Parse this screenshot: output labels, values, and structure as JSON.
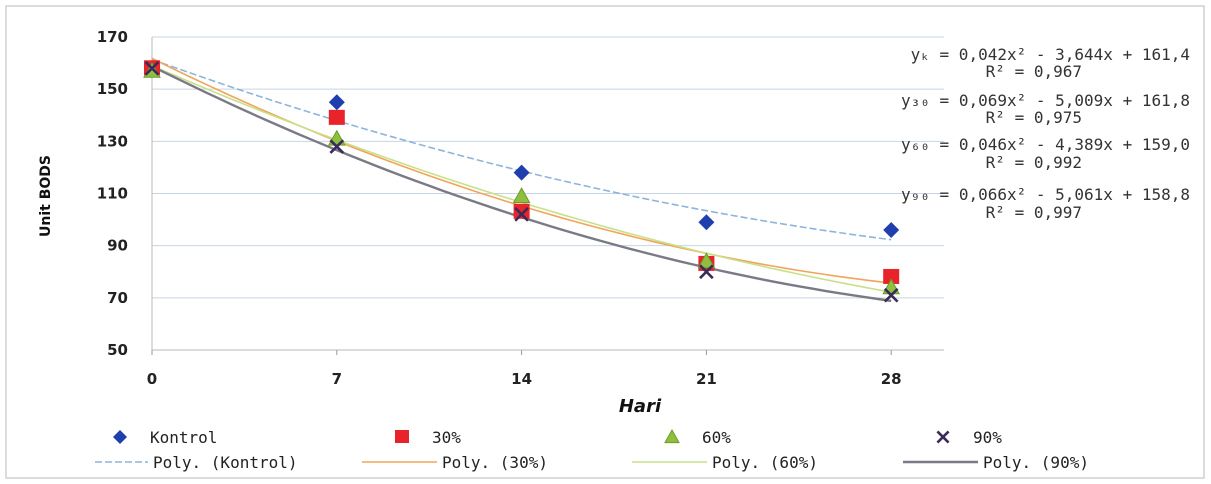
{
  "chart_data": {
    "type": "scatter",
    "xlabel": "Hari",
    "ylabel": "Unit BODS",
    "xlim": [
      0,
      30
    ],
    "ylim": [
      50,
      170
    ],
    "xticks": [
      0,
      7,
      14,
      21,
      28
    ],
    "yticks": [
      50,
      70,
      90,
      110,
      130,
      150,
      170
    ],
    "grid": "horizontal",
    "legend_position": "bottom",
    "x": [
      0,
      7,
      14,
      21,
      28
    ],
    "series": [
      {
        "name": "Kontrol",
        "marker": "diamond",
        "color": "#1f3fae",
        "values": [
          158,
          145,
          118,
          99,
          96
        ],
        "trend_name": "Poly. (Kontrol)",
        "trend_color": "#8fb4dc",
        "trend_coef": [
          0.042,
          -3.644,
          161.4
        ],
        "equation": "yₖ = 0,042x² - 3,644x + 161,4",
        "r2": "R² = 0,967"
      },
      {
        "name": "30%",
        "marker": "square",
        "color": "#e8232a",
        "values": [
          158,
          139,
          103,
          83,
          78
        ],
        "trend_name": "Poly. (30%)",
        "trend_color": "#f0a55a",
        "trend_coef": [
          0.069,
          -5.009,
          161.8
        ],
        "equation": "y₃₀ = 0,069x² - 5,009x + 161,8",
        "r2": "R² = 0,975"
      },
      {
        "name": "60%",
        "marker": "triangle",
        "color": "#8fbf3f",
        "values": [
          157,
          131,
          109,
          84,
          74
        ],
        "trend_name": "Poly. (60%)",
        "trend_color": "#c9e08a",
        "trend_coef": [
          0.046,
          -4.389,
          159.0
        ],
        "equation": "y₆₀ = 0,046x² - 4,389x + 159,0",
        "r2": "R² = 0,992"
      },
      {
        "name": "90%",
        "marker": "x",
        "color": "#3a2b5a",
        "values": [
          158,
          128,
          102,
          80,
          71
        ],
        "trend_name": "Poly. (90%)",
        "trend_color": "#7a7a86",
        "trend_coef": [
          0.066,
          -5.061,
          158.8
        ],
        "equation": "y₉₀ = 0,066x² - 5,061x + 158,8",
        "r2": "R² = 0,997"
      }
    ]
  }
}
